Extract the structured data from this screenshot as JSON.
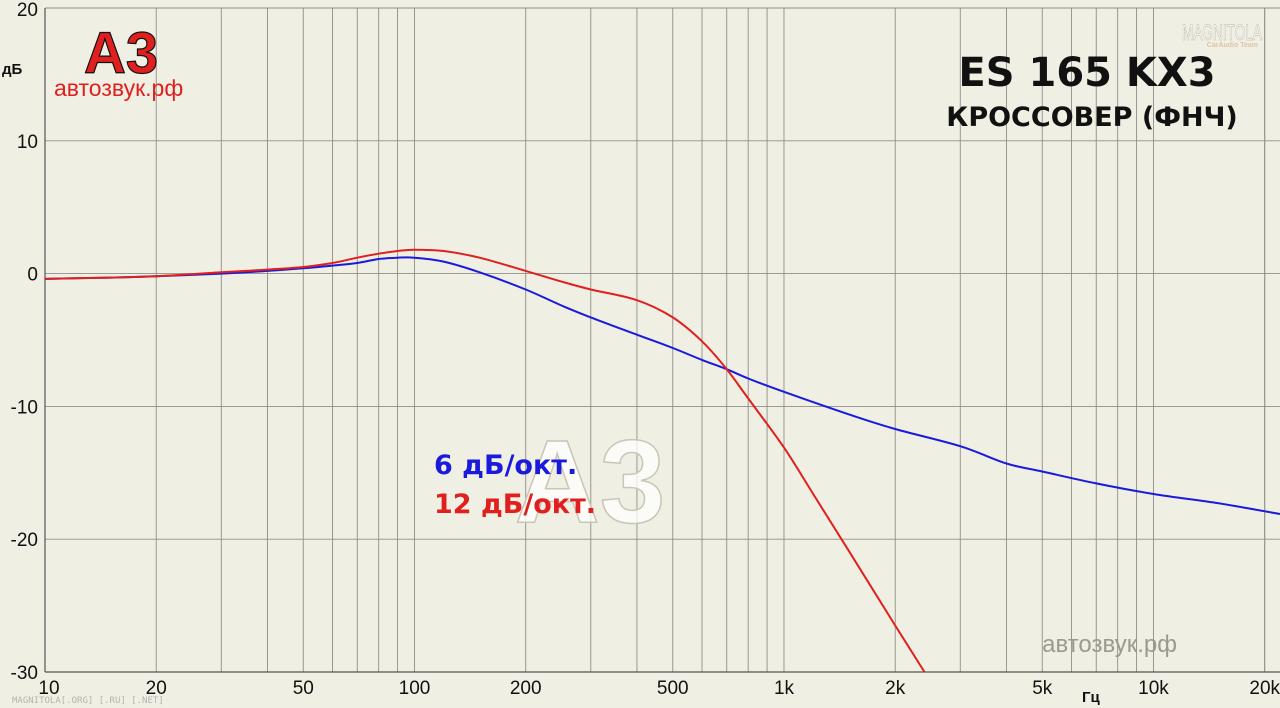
{
  "chart_data": {
    "type": "line",
    "title": "ES 165 KX3",
    "subtitle": "КРОССОВЕР (ФНЧ)",
    "xlabel": "Гц",
    "ylabel": "дБ",
    "x_scale": "log",
    "xlim": [
      10,
      22000
    ],
    "ylim": [
      -30,
      20
    ],
    "grid": true,
    "x_tick_labels": [
      {
        "value": 10,
        "label": "10"
      },
      {
        "value": 20,
        "label": "20"
      },
      {
        "value": 50,
        "label": "50"
      },
      {
        "value": 100,
        "label": "100"
      },
      {
        "value": 200,
        "label": "200"
      },
      {
        "value": 500,
        "label": "500"
      },
      {
        "value": 1000,
        "label": "1k"
      },
      {
        "value": 2000,
        "label": "2k"
      },
      {
        "value": 5000,
        "label": "5k"
      },
      {
        "value": 10000,
        "label": "10k"
      },
      {
        "value": 20000,
        "label": "20k"
      }
    ],
    "y_tick_labels": [
      {
        "value": 20,
        "label": "20"
      },
      {
        "value": 10,
        "label": "10"
      },
      {
        "value": 0,
        "label": "0"
      },
      {
        "value": -10,
        "label": "-10"
      },
      {
        "value": -20,
        "label": "-20"
      },
      {
        "value": -30,
        "label": "-30"
      }
    ],
    "series": [
      {
        "name": "6 дБ/окт.",
        "color": "#1a1adc",
        "points": [
          [
            10,
            -0.4
          ],
          [
            15,
            -0.3
          ],
          [
            20,
            -0.2
          ],
          [
            30,
            0.0
          ],
          [
            40,
            0.2
          ],
          [
            50,
            0.4
          ],
          [
            60,
            0.6
          ],
          [
            70,
            0.8
          ],
          [
            80,
            1.1
          ],
          [
            90,
            1.2
          ],
          [
            100,
            1.2
          ],
          [
            120,
            0.9
          ],
          [
            150,
            0.1
          ],
          [
            200,
            -1.2
          ],
          [
            250,
            -2.4
          ],
          [
            300,
            -3.3
          ],
          [
            400,
            -4.6
          ],
          [
            500,
            -5.6
          ],
          [
            600,
            -6.5
          ],
          [
            700,
            -7.2
          ],
          [
            800,
            -7.9
          ],
          [
            1000,
            -8.9
          ],
          [
            1500,
            -10.6
          ],
          [
            2000,
            -11.7
          ],
          [
            3000,
            -13.0
          ],
          [
            4000,
            -14.3
          ],
          [
            5000,
            -14.9
          ],
          [
            7000,
            -15.8
          ],
          [
            10000,
            -16.6
          ],
          [
            15000,
            -17.3
          ],
          [
            22000,
            -18.1
          ]
        ]
      },
      {
        "name": "12 дБ/окт.",
        "color": "#e0201e",
        "points": [
          [
            10,
            -0.4
          ],
          [
            15,
            -0.3
          ],
          [
            20,
            -0.2
          ],
          [
            30,
            0.1
          ],
          [
            40,
            0.3
          ],
          [
            50,
            0.5
          ],
          [
            60,
            0.8
          ],
          [
            70,
            1.2
          ],
          [
            80,
            1.5
          ],
          [
            90,
            1.7
          ],
          [
            100,
            1.8
          ],
          [
            120,
            1.7
          ],
          [
            150,
            1.2
          ],
          [
            200,
            0.2
          ],
          [
            250,
            -0.6
          ],
          [
            300,
            -1.2
          ],
          [
            400,
            -2.0
          ],
          [
            500,
            -3.3
          ],
          [
            600,
            -5.1
          ],
          [
            700,
            -7.2
          ],
          [
            800,
            -9.4
          ],
          [
            1000,
            -13.1
          ],
          [
            1200,
            -16.6
          ],
          [
            1500,
            -20.9
          ],
          [
            2000,
            -26.5
          ],
          [
            2400,
            -30.0
          ]
        ]
      }
    ],
    "legend": [
      {
        "label": "6 дБ/окт.",
        "color": "#1a1adc"
      },
      {
        "label": "12 дБ/окт.",
        "color": "#e0201e"
      }
    ]
  },
  "logo": {
    "text": "А3",
    "site": "автозвук.рф"
  },
  "watermark": {
    "center": "А3",
    "bottom_right": "автозвук.рф",
    "corner_brand": "MAGNITOLA",
    "corner_sub": "CarAudio Team",
    "footer": "MAGNITOLA[.ORG] [.RU] [.NET]"
  }
}
